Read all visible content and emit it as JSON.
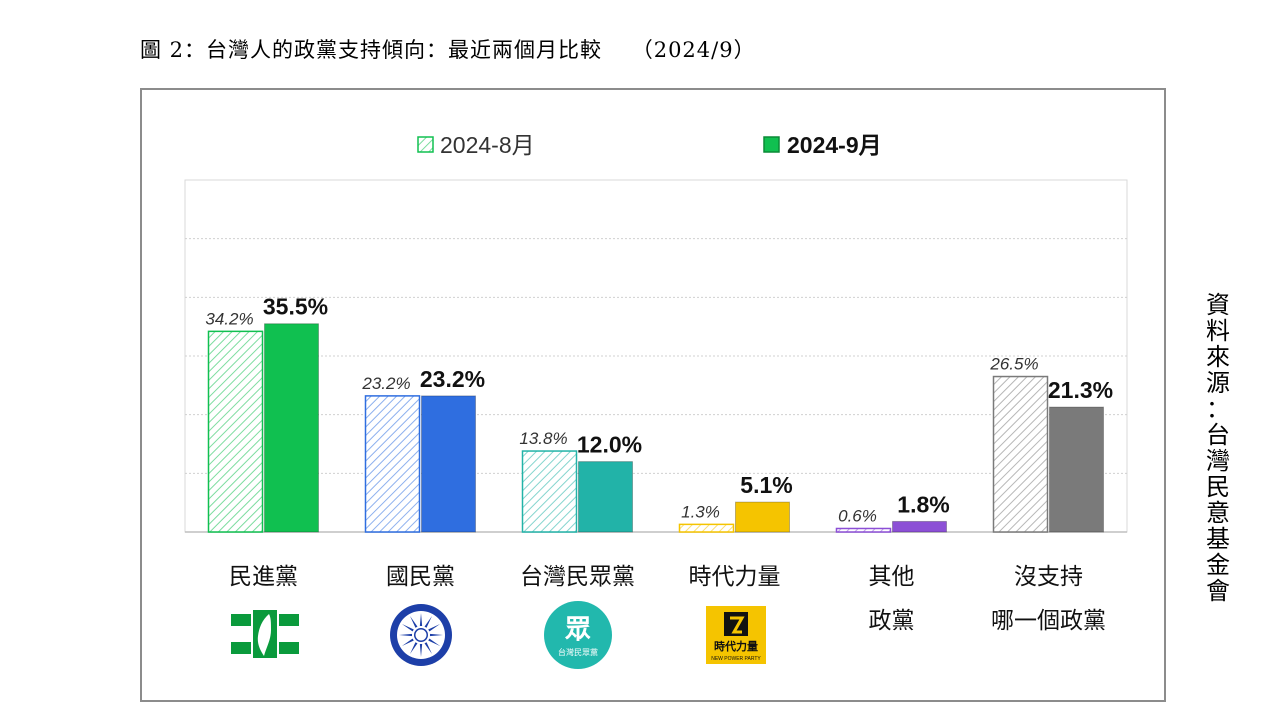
{
  "figure_title": "圖 2：台灣人的政黨支持傾向：最近兩個月比較　 （2024/9）",
  "source_text": "資料來源：台灣民意基金會",
  "colors": {
    "dpp": "#10c050",
    "kmt": "#2f6ee0",
    "tpp": "#22b3a8",
    "npp": "#f5c400",
    "other": "#8c4fd6",
    "none": "#7a7a7a"
  },
  "chart_data": {
    "type": "bar",
    "title": "",
    "xlabel": "",
    "ylabel": "",
    "ylim": [
      0,
      60
    ],
    "grid": true,
    "legend_position": "top",
    "categories": [
      "民進黨",
      "國民黨",
      "台灣民眾黨",
      "時代力量",
      "其他\n政黨",
      "沒支持\n哪一個政黨"
    ],
    "series": [
      {
        "name": "2024-8月",
        "values": [
          34.2,
          23.2,
          13.8,
          1.3,
          0.6,
          26.5
        ],
        "style": "hatched",
        "labels": [
          "34.2%",
          "23.2%",
          "13.8%",
          "1.3%",
          "0.6%",
          "26.5%"
        ]
      },
      {
        "name": "2024-9月",
        "values": [
          35.5,
          23.2,
          12.0,
          5.1,
          1.8,
          21.3
        ],
        "style": "solid",
        "labels": [
          "35.5%",
          "23.2%",
          "12.0%",
          "5.1%",
          "1.8%",
          "21.3%"
        ]
      }
    ]
  },
  "logos": {
    "tpp_text": "眾",
    "tpp_sub": "台灣民眾黨",
    "npp_text": "時代力量",
    "npp_sub": "NEW POWER PARTY"
  }
}
